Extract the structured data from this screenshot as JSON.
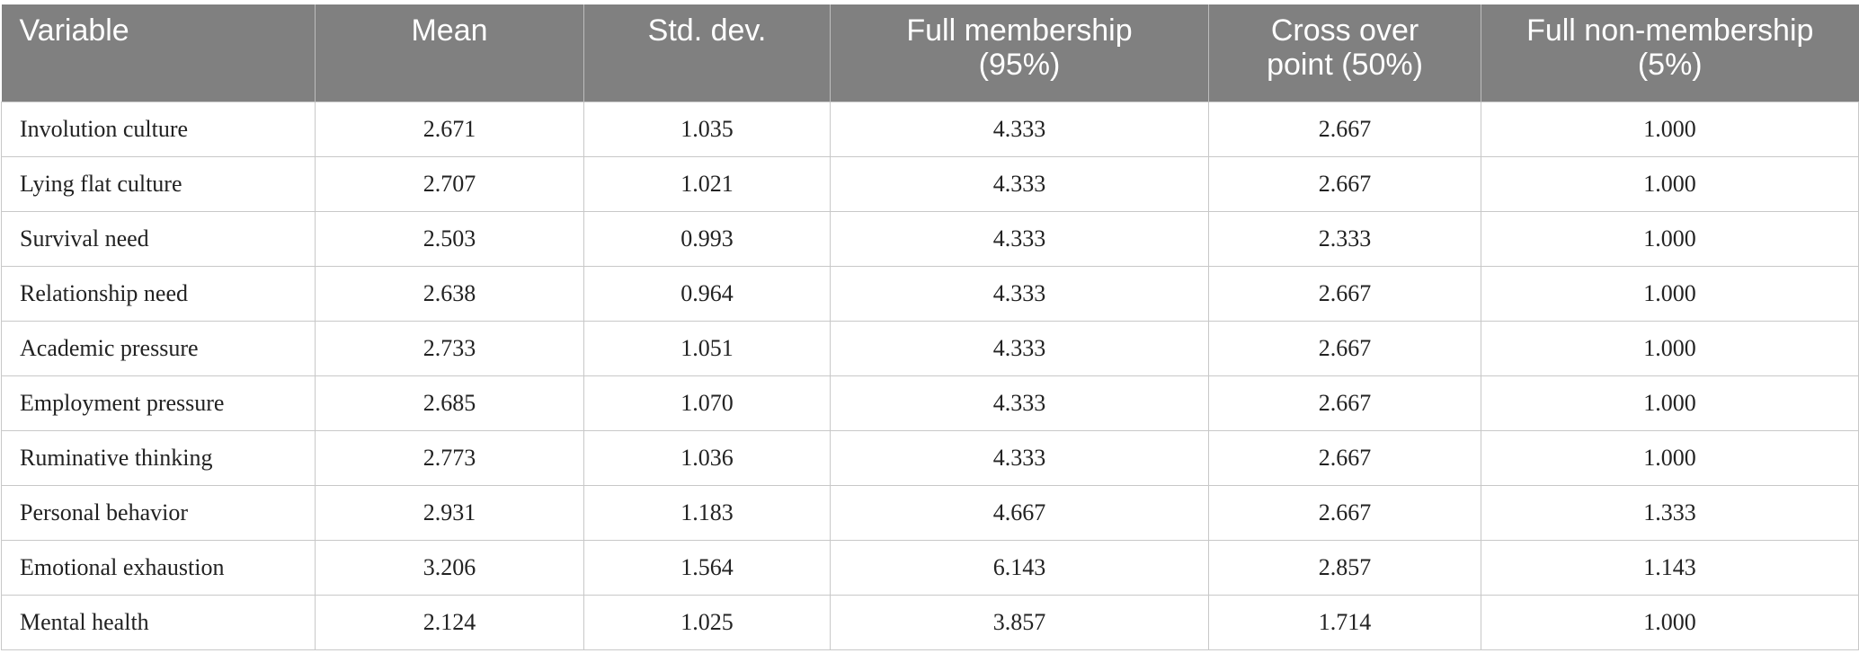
{
  "table": {
    "header": [
      "Variable",
      "Mean",
      "Std. dev.",
      "Full membership (95%)",
      "Cross over point (50%)",
      "Full non-membership (5%)"
    ],
    "rows": [
      [
        "Involution culture",
        "2.671",
        "1.035",
        "4.333",
        "2.667",
        "1.000"
      ],
      [
        "Lying flat culture",
        "2.707",
        "1.021",
        "4.333",
        "2.667",
        "1.000"
      ],
      [
        "Survival need",
        "2.503",
        "0.993",
        "4.333",
        "2.333",
        "1.000"
      ],
      [
        "Relationship need",
        "2.638",
        "0.964",
        "4.333",
        "2.667",
        "1.000"
      ],
      [
        "Academic pressure",
        "2.733",
        "1.051",
        "4.333",
        "2.667",
        "1.000"
      ],
      [
        "Employment pressure",
        "2.685",
        "1.070",
        "4.333",
        "2.667",
        "1.000"
      ],
      [
        "Ruminative thinking",
        "2.773",
        "1.036",
        "4.333",
        "2.667",
        "1.000"
      ],
      [
        "Personal behavior",
        "2.931",
        "1.183",
        "4.667",
        "2.667",
        "1.333"
      ],
      [
        "Emotional exhaustion",
        "3.206",
        "1.564",
        "6.143",
        "2.857",
        "1.143"
      ],
      [
        "Mental health",
        "2.124",
        "1.025",
        "3.857",
        "1.714",
        "1.000"
      ]
    ]
  }
}
